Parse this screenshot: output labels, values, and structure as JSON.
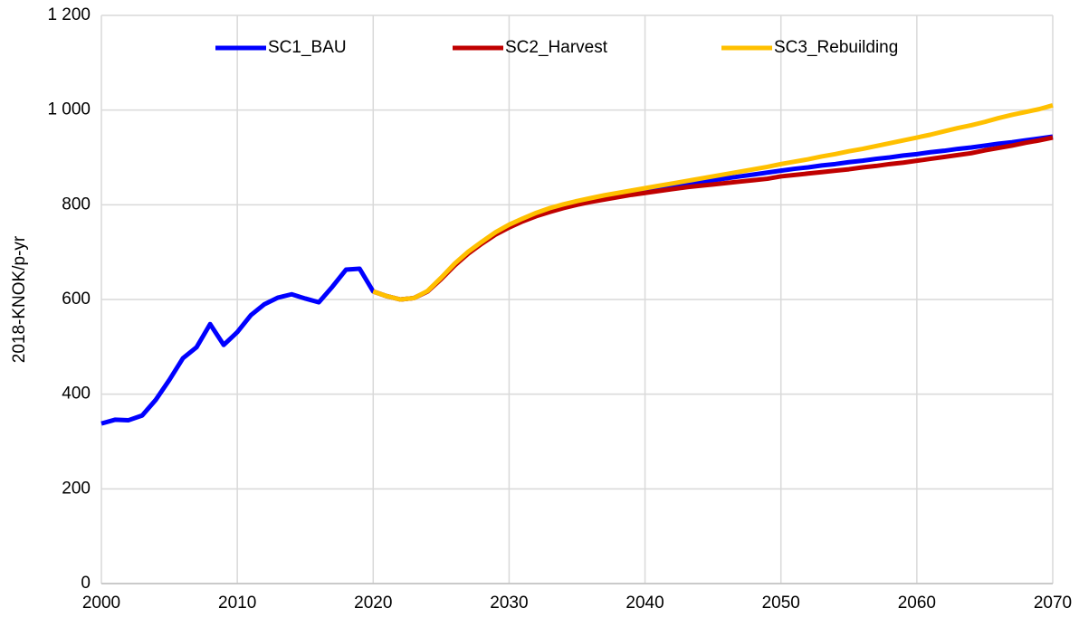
{
  "chart_data": {
    "type": "line",
    "y_label": "2018-KNOK/p-yr",
    "x": [
      2000,
      2001,
      2002,
      2003,
      2004,
      2005,
      2006,
      2007,
      2008,
      2009,
      2010,
      2011,
      2012,
      2013,
      2014,
      2015,
      2016,
      2017,
      2018,
      2019,
      2020,
      2021,
      2022,
      2023,
      2024,
      2025,
      2026,
      2027,
      2028,
      2029,
      2030,
      2031,
      2032,
      2033,
      2034,
      2035,
      2036,
      2037,
      2038,
      2039,
      2040,
      2041,
      2042,
      2043,
      2044,
      2045,
      2046,
      2047,
      2048,
      2049,
      2050,
      2051,
      2052,
      2053,
      2054,
      2055,
      2056,
      2057,
      2058,
      2059,
      2060,
      2061,
      2062,
      2063,
      2064,
      2065,
      2066,
      2067,
      2068,
      2069,
      2070
    ],
    "series": [
      {
        "name": "SC1_BAU",
        "color": "#0000ff",
        "values": [
          338,
          346,
          345,
          355,
          388,
          430,
          476,
          499,
          548,
          504,
          531,
          567,
          590,
          604,
          611,
          602,
          594,
          627,
          663,
          665,
          617,
          607,
          600,
          603,
          617,
          645,
          675,
          700,
          721,
          740,
          755,
          768,
          780,
          790,
          798,
          805,
          811,
          817,
          822,
          827,
          832,
          836,
          840,
          844,
          848,
          852,
          856,
          860,
          864,
          868,
          872,
          876,
          879,
          883,
          886,
          890,
          893,
          897,
          900,
          904,
          907,
          911,
          914,
          918,
          921,
          925,
          929,
          932,
          936,
          940,
          944
        ]
      },
      {
        "name": "SC2_Harvest",
        "color": "#c00000",
        "values": [
          null,
          null,
          null,
          null,
          null,
          null,
          null,
          null,
          null,
          null,
          null,
          null,
          null,
          null,
          null,
          null,
          null,
          null,
          null,
          null,
          617,
          607,
          600,
          603,
          617,
          643,
          672,
          697,
          718,
          737,
          752,
          765,
          776,
          785,
          793,
          800,
          806,
          811,
          816,
          821,
          825,
          829,
          833,
          837,
          840,
          843,
          846,
          849,
          852,
          855,
          860,
          863,
          866,
          869,
          872,
          875,
          879,
          882,
          886,
          889,
          893,
          897,
          901,
          905,
          909,
          915,
          920,
          925,
          931,
          936,
          942
        ]
      },
      {
        "name": "SC3_Rebuilding",
        "color": "#ffc000",
        "values": [
          null,
          null,
          null,
          null,
          null,
          null,
          null,
          null,
          null,
          null,
          null,
          null,
          null,
          null,
          null,
          null,
          null,
          null,
          null,
          null,
          617,
          607,
          600,
          603,
          618,
          646,
          676,
          701,
          722,
          742,
          758,
          771,
          783,
          793,
          801,
          808,
          814,
          820,
          825,
          830,
          835,
          840,
          845,
          850,
          855,
          860,
          865,
          870,
          875,
          880,
          886,
          891,
          896,
          902,
          907,
          913,
          918,
          924,
          930,
          936,
          942,
          948,
          955,
          962,
          968,
          975,
          983,
          990,
          996,
          1002,
          1010
        ]
      }
    ],
    "xlim": [
      2000,
      2070
    ],
    "xticks": [
      2000,
      2010,
      2020,
      2030,
      2040,
      2050,
      2060,
      2070
    ],
    "ylim": [
      0,
      1200
    ],
    "yticks": [
      0,
      200,
      400,
      600,
      800,
      {
        "value": 1000,
        "label": "1 000"
      },
      {
        "value": 1200,
        "label": "1 200"
      }
    ],
    "grid": true,
    "legend": "top"
  }
}
